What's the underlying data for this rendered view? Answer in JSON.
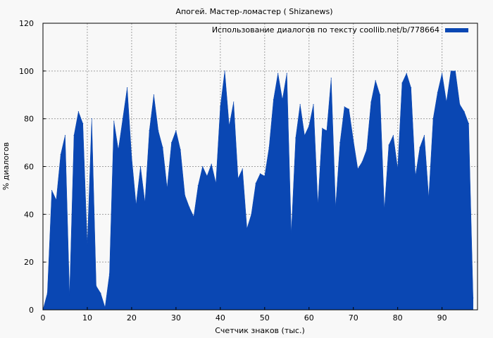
{
  "chart_data": {
    "type": "area",
    "title": "Апогей. Мастер-ломастер ( Shizanews)",
    "xlabel": "Счетчик знаков (тыс.)",
    "ylabel": "% диалогов",
    "xlim": [
      0,
      98
    ],
    "ylim": [
      0,
      120
    ],
    "xticks": [
      0,
      10,
      20,
      30,
      40,
      50,
      60,
      70,
      80,
      90
    ],
    "yticks": [
      0,
      20,
      40,
      60,
      80,
      100,
      120
    ],
    "grid": true,
    "legend_position": "top-right",
    "series": [
      {
        "name": "Использование диалогов по тексту coollib.net/b/778664",
        "color": "#0a47b3",
        "x": [
          0,
          1,
          2,
          3,
          4,
          5,
          6,
          7,
          8,
          9,
          10,
          11,
          12,
          13,
          14,
          15,
          16,
          17,
          18,
          19,
          20,
          21,
          22,
          23,
          24,
          25,
          26,
          27,
          28,
          29,
          30,
          31,
          32,
          33,
          34,
          35,
          36,
          37,
          38,
          39,
          40,
          41,
          42,
          43,
          44,
          45,
          46,
          47,
          48,
          49,
          50,
          51,
          52,
          53,
          54,
          55,
          56,
          57,
          58,
          59,
          60,
          61,
          62,
          63,
          64,
          65,
          66,
          67,
          68,
          69,
          70,
          71,
          72,
          73,
          74,
          75,
          76,
          77,
          78,
          79,
          80,
          81,
          82,
          83,
          84,
          85,
          86,
          87,
          88,
          89,
          90,
          91,
          92,
          93,
          94,
          95,
          96,
          97
        ],
        "y": [
          0,
          7,
          50,
          46,
          65,
          73,
          6,
          73,
          83,
          78,
          27,
          80,
          10,
          7,
          1,
          15,
          79,
          67,
          80,
          93,
          64,
          44,
          60,
          45,
          75,
          90,
          75,
          68,
          51,
          70,
          75,
          67,
          48,
          43,
          39,
          52,
          60,
          56,
          61,
          53,
          85,
          100,
          77,
          87,
          55,
          59,
          34,
          40,
          53,
          57,
          56,
          68,
          88,
          99,
          88,
          99,
          32,
          72,
          86,
          73,
          77,
          86,
          44,
          76,
          75,
          97,
          43,
          70,
          85,
          84,
          71,
          59,
          62,
          67,
          87,
          96,
          90,
          42,
          69,
          73,
          59,
          95,
          99,
          93,
          56,
          68,
          73,
          47,
          80,
          91,
          99,
          87,
          100,
          100,
          86,
          83,
          78,
          5
        ]
      }
    ]
  }
}
